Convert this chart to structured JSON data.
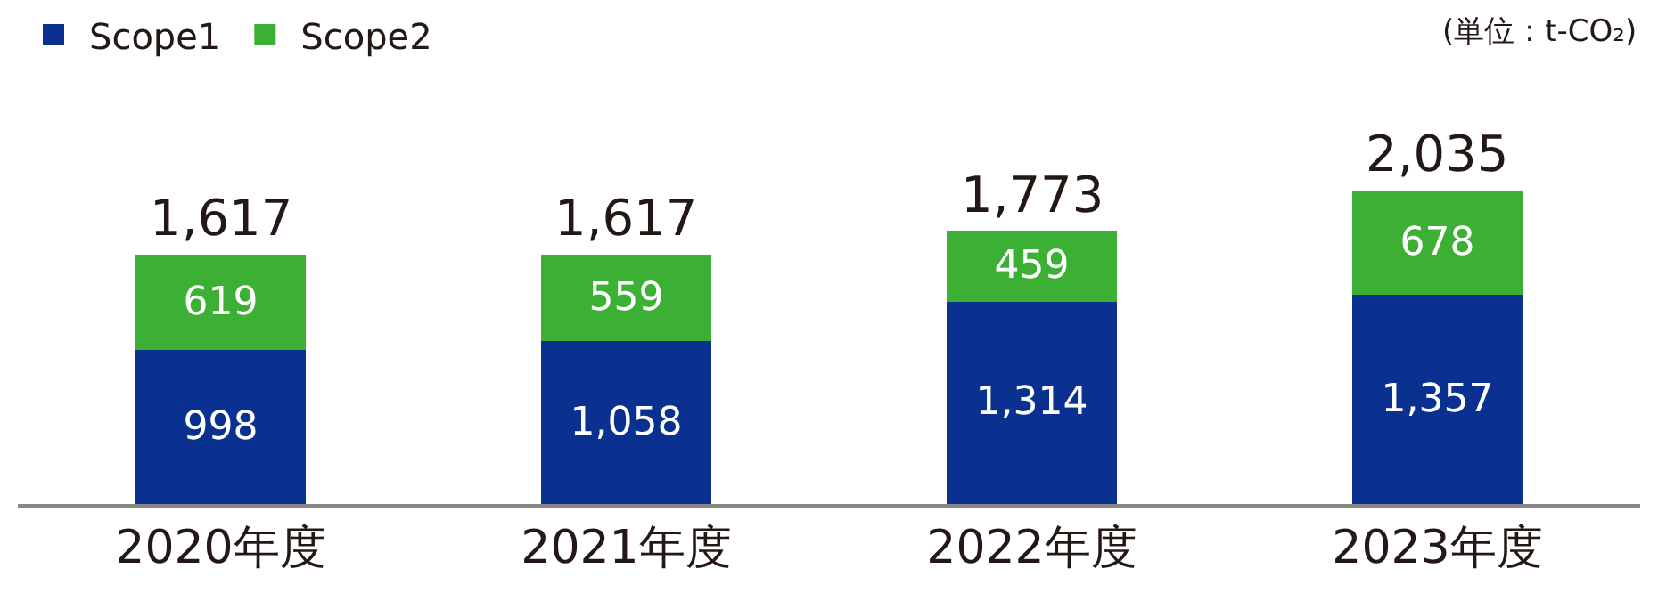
{
  "chart_data": {
    "type": "bar",
    "stacked": true,
    "categories": [
      "2020年度",
      "2021年度",
      "2022年度",
      "2023年度"
    ],
    "series": [
      {
        "name": "Scope1",
        "color": "#0a318f",
        "values": [
          998,
          1058,
          1314,
          1357
        ],
        "value_labels": [
          "998",
          "1,058",
          "1,314",
          "1,357"
        ]
      },
      {
        "name": "Scope2",
        "color": "#3cb034",
        "values": [
          619,
          559,
          459,
          678
        ],
        "value_labels": [
          "619",
          "559",
          "459",
          "678"
        ]
      }
    ],
    "totals": [
      "1,617",
      "1,617",
      "1,773",
      "2,035"
    ],
    "annotations": [
      "(単位：t-CO₂)"
    ],
    "tick_labels": "x",
    "legend": "top left"
  }
}
